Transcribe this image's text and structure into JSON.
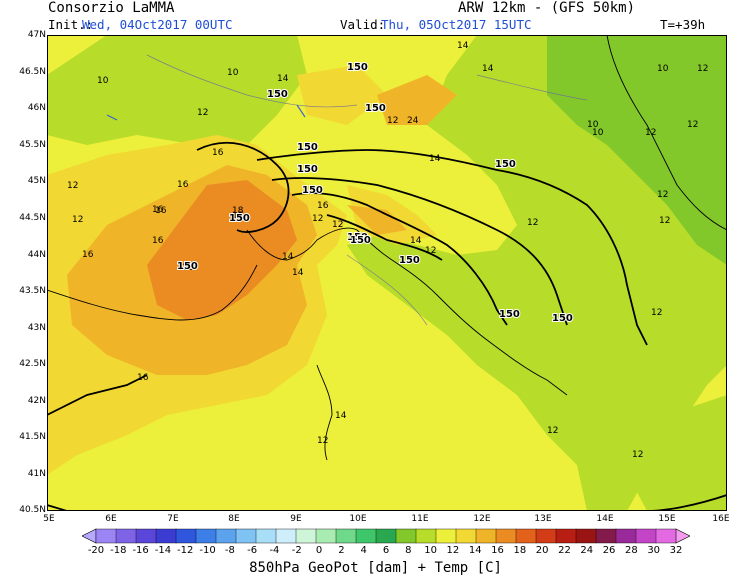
{
  "header": {
    "org": "Consorzio LaMMA",
    "model": "ARW 12km - (GFS 50km)",
    "init_label": "Init.:",
    "init_value": "Wed, 04Oct2017 00UTC",
    "valid_label": "Valid:",
    "valid_value": "Thu, 05Oct2017 15UTC",
    "lead_time": "T=+39h"
  },
  "axes": {
    "lat_labels": [
      "47N",
      "46.5N",
      "46N",
      "45.5N",
      "45N",
      "44.5N",
      "44N",
      "43.5N",
      "43N",
      "42.5N",
      "42N",
      "41.5N",
      "41N",
      "40.5N"
    ],
    "lon_labels": [
      "5E",
      "6E",
      "7E",
      "8E",
      "9E",
      "10E",
      "11E",
      "12E",
      "13E",
      "14E",
      "15E",
      "16E"
    ]
  },
  "colorbar": {
    "title": "850hPa GeoPot [dam] + Temp [C]",
    "labels": [
      "-20",
      "-18",
      "-16",
      "-14",
      "-12",
      "-10",
      "-8",
      "-6",
      "-4",
      "-2",
      "0",
      "2",
      "4",
      "6",
      "8",
      "10",
      "12",
      "14",
      "16",
      "18",
      "20",
      "22",
      "24",
      "26",
      "28",
      "30",
      "32"
    ],
    "colors": [
      "#b8a8ff",
      "#9b84f4",
      "#7e63e6",
      "#5a46d8",
      "#3c3cd2",
      "#2f56dc",
      "#3d7fe6",
      "#5ca3ee",
      "#7fc3f4",
      "#a8def8",
      "#cdeefa",
      "#cff5d9",
      "#a8ecb2",
      "#6fd88a",
      "#3ec66a",
      "#2aa850",
      "#82c82a",
      "#b8dc2a",
      "#ecf03a",
      "#f2d832",
      "#f0b428",
      "#ea8c22",
      "#e2621c",
      "#d23c16",
      "#b81e14",
      "#9a1414",
      "#821a4a",
      "#9a2a9a",
      "#c444c8",
      "#e46ae4",
      "#f49cf0"
    ]
  },
  "map_labels": {
    "temperature": [
      "14",
      "14",
      "10",
      "10",
      "14",
      "12",
      "12",
      "10",
      "12",
      "24",
      "16",
      "16",
      "14",
      "12",
      "16",
      "18",
      "12",
      "16",
      "16",
      "18",
      "16",
      "12",
      "12",
      "16",
      "12",
      "14",
      "16",
      "12",
      "14",
      "12",
      "12",
      "14",
      "14",
      "12",
      "12",
      "16",
      "10",
      "12",
      "12",
      "10",
      "12",
      "12"
    ],
    "geopotential": [
      "150",
      "150",
      "150",
      "150",
      "150",
      "150",
      "150",
      "150",
      "150",
      "150",
      "150",
      "150",
      "150",
      "150"
    ]
  },
  "colors": {
    "temp_10": "#82c82a",
    "temp_12": "#b8dc2a",
    "temp_14": "#ecf03a",
    "temp_16": "#f2d832",
    "temp_18": "#f0b428",
    "temp_20": "#ea8c22"
  }
}
